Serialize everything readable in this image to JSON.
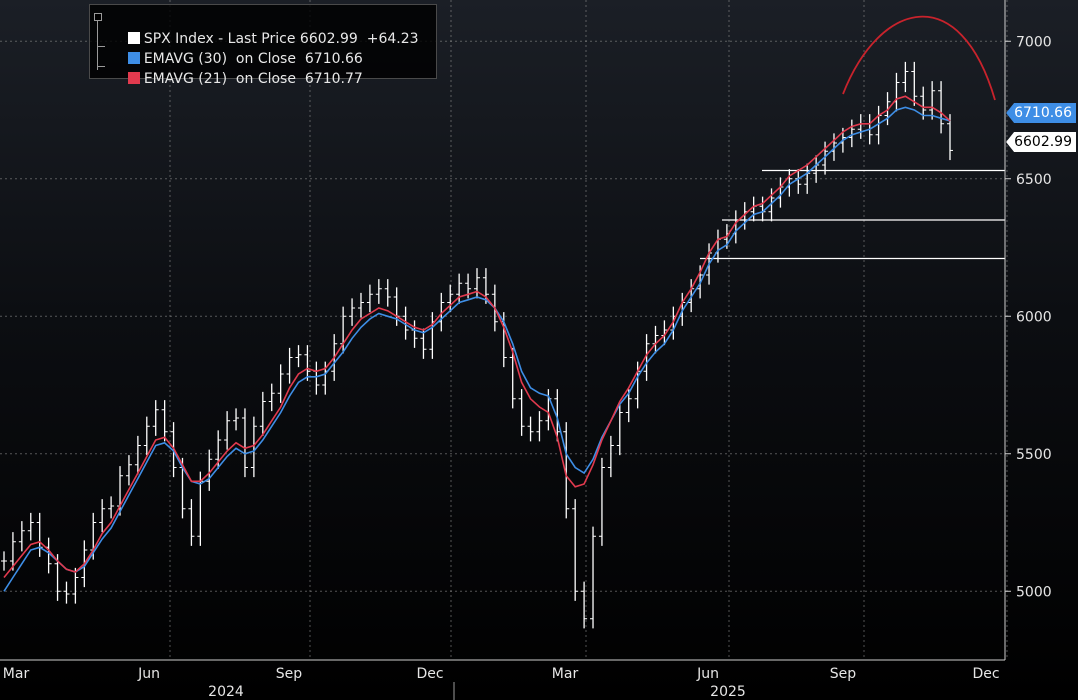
{
  "legend": {
    "spx": {
      "name": "SPX Index - Last Price",
      "value": "6602.99",
      "change": "+64.23",
      "color": "#ffffff"
    },
    "ema30": {
      "name": "EMAVG (30)  on Close",
      "value": "6710.66",
      "color": "#3e8ee6"
    },
    "ema21": {
      "name": "EMAVG (21)  on Close",
      "value": "6710.77",
      "color": "#e23a4e"
    }
  },
  "price_tags": {
    "ema": "6710.66",
    "last": "6602.99"
  },
  "chart_data": {
    "type": "line",
    "title": "",
    "xlabel": "",
    "ylabel": "",
    "ylim": [
      4750,
      7150
    ],
    "y_ticks": [
      5000,
      5500,
      6000,
      6500,
      7000
    ],
    "x_ticks": [
      "Mar",
      "Jun",
      "Sep",
      "Dec",
      "Mar",
      "Jun",
      "Sep",
      "Dec"
    ],
    "x_year_labels": [
      "2024",
      "2025"
    ],
    "grid": true,
    "legend_position": "top-left",
    "series": [
      {
        "name": "SPX Index - Last Price",
        "style": "ohlc-bars",
        "color": "#ffffff",
        "values": [
          5110,
          5180,
          5220,
          5250,
          5160,
          5100,
          5000,
          4990,
          5050,
          5150,
          5250,
          5300,
          5310,
          5420,
          5460,
          5530,
          5600,
          5660,
          5580,
          5450,
          5300,
          5200,
          5400,
          5480,
          5550,
          5620,
          5630,
          5450,
          5600,
          5690,
          5720,
          5790,
          5850,
          5860,
          5800,
          5750,
          5800,
          5900,
          6000,
          6030,
          6050,
          6080,
          6100,
          6070,
          6000,
          5950,
          5920,
          5880,
          5980,
          6050,
          6080,
          6120,
          6100,
          6140,
          6080,
          5980,
          5850,
          5700,
          5600,
          5580,
          5620,
          5700,
          5580,
          5300,
          5000,
          4900,
          5200,
          5450,
          5530,
          5650,
          5700,
          5800,
          5900,
          5930,
          5950,
          6000,
          6050,
          6100,
          6150,
          6230,
          6280,
          6300,
          6350,
          6380,
          6400,
          6380,
          6430,
          6470,
          6500,
          6480,
          6520,
          6550,
          6600,
          6630,
          6650,
          6680,
          6700,
          6660,
          6730,
          6780,
          6850,
          6890,
          6800,
          6750,
          6820,
          6700,
          6602.99
        ]
      },
      {
        "name": "EMAVG (30) on Close",
        "color": "#3e8ee6",
        "values": [
          5000,
          5050,
          5100,
          5150,
          5160,
          5140,
          5110,
          5080,
          5070,
          5090,
          5140,
          5190,
          5230,
          5290,
          5350,
          5410,
          5470,
          5530,
          5540,
          5510,
          5450,
          5400,
          5390,
          5410,
          5450,
          5490,
          5520,
          5500,
          5510,
          5550,
          5600,
          5650,
          5710,
          5760,
          5780,
          5780,
          5790,
          5830,
          5870,
          5920,
          5960,
          5990,
          6010,
          6000,
          5990,
          5970,
          5950,
          5940,
          5960,
          5990,
          6020,
          6050,
          6060,
          6070,
          6060,
          6030,
          5980,
          5900,
          5800,
          5740,
          5720,
          5710,
          5630,
          5500,
          5450,
          5430,
          5480,
          5560,
          5620,
          5680,
          5720,
          5780,
          5830,
          5870,
          5900,
          5950,
          6020,
          6070,
          6120,
          6190,
          6240,
          6260,
          6310,
          6340,
          6370,
          6380,
          6410,
          6440,
          6480,
          6500,
          6520,
          6550,
          6580,
          6610,
          6640,
          6660,
          6670,
          6680,
          6700,
          6720,
          6750,
          6760,
          6750,
          6730,
          6730,
          6720,
          6710.66
        ]
      },
      {
        "name": "EMAVG (21) on Close",
        "color": "#e23a4e",
        "values": [
          5050,
          5090,
          5130,
          5170,
          5180,
          5150,
          5110,
          5080,
          5070,
          5100,
          5150,
          5210,
          5250,
          5310,
          5370,
          5430,
          5490,
          5550,
          5560,
          5520,
          5460,
          5400,
          5400,
          5430,
          5470,
          5510,
          5540,
          5520,
          5530,
          5570,
          5620,
          5670,
          5740,
          5790,
          5810,
          5800,
          5810,
          5850,
          5900,
          5950,
          5990,
          6010,
          6030,
          6020,
          6000,
          5980,
          5960,
          5950,
          5970,
          6010,
          6040,
          6070,
          6080,
          6090,
          6070,
          6030,
          5960,
          5870,
          5760,
          5700,
          5670,
          5650,
          5560,
          5420,
          5380,
          5390,
          5460,
          5550,
          5620,
          5690,
          5740,
          5800,
          5860,
          5900,
          5930,
          5980,
          6050,
          6100,
          6160,
          6230,
          6280,
          6290,
          6340,
          6370,
          6400,
          6410,
          6440,
          6470,
          6510,
          6530,
          6550,
          6580,
          6610,
          6640,
          6670,
          6690,
          6700,
          6700,
          6730,
          6750,
          6790,
          6800,
          6780,
          6760,
          6760,
          6740,
          6710.77
        ]
      }
    ],
    "support_levels": [
      6530,
      6350,
      6210
    ],
    "annotation_arc": {
      "color": "#c8232c"
    }
  }
}
